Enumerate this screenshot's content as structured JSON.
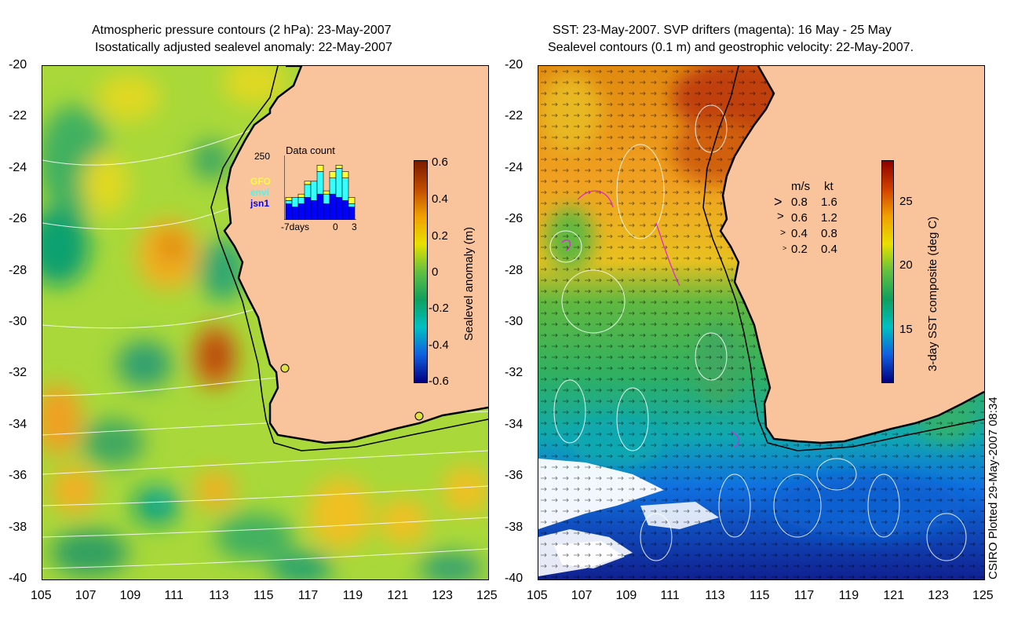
{
  "left_panel": {
    "title_line1": "Atmospheric pressure contours (2 hPa): 23-May-2007",
    "title_line2": "Isostatically adjusted sealevel anomaly: 22-May-2007",
    "colorbar": {
      "label": "Sealevel anomaly (m)",
      "ticks": [
        "0.6",
        "0.4",
        "0.2",
        "0",
        "-0.2",
        "-0.4",
        "-0.6"
      ],
      "colors": [
        "#7a1a00",
        "#c04a00",
        "#f0a000",
        "#e8e000",
        "#60c040",
        "#10a060",
        "#00c0c0",
        "#1060e0",
        "#000080"
      ]
    },
    "inset": {
      "title": "Data count",
      "ymax_label": "250",
      "x_labels": [
        "-7days",
        "0",
        "3"
      ],
      "legend": [
        {
          "name": "GFO",
          "color": "#ffff33"
        },
        {
          "name": "envi",
          "color": "#33ffff"
        },
        {
          "name": "jsn1",
          "color": "#0000ff"
        }
      ],
      "bars": [
        {
          "jsn1": 0.25,
          "envi": 0.05,
          "gfo": 0.05
        },
        {
          "jsn1": 0.2,
          "envi": 0.15,
          "gfo": 0.0
        },
        {
          "jsn1": 0.25,
          "envi": 0.1,
          "gfo": 0.05
        },
        {
          "jsn1": 0.35,
          "envi": 0.2,
          "gfo": 0.05
        },
        {
          "jsn1": 0.3,
          "envi": 0.3,
          "gfo": 0.0
        },
        {
          "jsn1": 0.4,
          "envi": 0.35,
          "gfo": 0.1
        },
        {
          "jsn1": 0.25,
          "envi": 0.15,
          "gfo": 0.05
        },
        {
          "jsn1": 0.4,
          "envi": 0.25,
          "gfo": 0.1
        },
        {
          "jsn1": 0.35,
          "envi": 0.45,
          "gfo": 0.05
        },
        {
          "jsn1": 0.3,
          "envi": 0.35,
          "gfo": 0.1
        },
        {
          "jsn1": 0.2,
          "envi": 0.05,
          "gfo": 0.1
        }
      ]
    }
  },
  "right_panel": {
    "title_line1": "SST: 23-May-2007. SVP drifters (magenta): 16 May - 25 May",
    "title_line2": "Sealevel contours (0.1 m) and geostrophic velocity: 22-May-2007.",
    "colorbar": {
      "label": "3-day SST composite (deg C)",
      "ticks": [
        "25",
        "20",
        "15"
      ],
      "colors": [
        "#8b0000",
        "#d04000",
        "#f0a000",
        "#e8e000",
        "#60c040",
        "#10a060",
        "#00c0c0",
        "#1060e0",
        "#000080"
      ]
    },
    "speed_legend": {
      "header_ms": "m/s",
      "header_kt": "kt",
      "rows": [
        {
          "ms": "0.8",
          "kt": "1.6"
        },
        {
          "ms": "0.6",
          "kt": "1.2"
        },
        {
          "ms": "0.4",
          "kt": "0.8"
        },
        {
          "ms": "0.2",
          "kt": "0.4"
        }
      ]
    }
  },
  "axes": {
    "lat_labels": [
      "-20",
      "-22",
      "-24",
      "-26",
      "-28",
      "-30",
      "-32",
      "-34",
      "-36",
      "-38",
      "-40"
    ],
    "lon_labels": [
      "105",
      "107",
      "109",
      "111",
      "113",
      "115",
      "117",
      "119",
      "121",
      "123",
      "125"
    ]
  },
  "credit": "CSIRO Plotted 29-May-2007 08:34",
  "colors": {
    "land": "#f9c49c",
    "coast": "#000000"
  }
}
